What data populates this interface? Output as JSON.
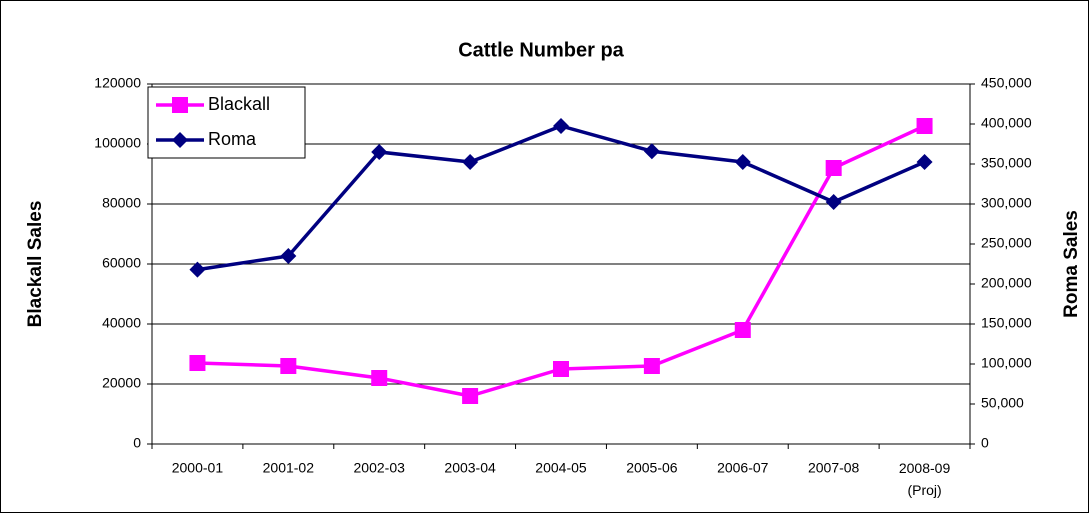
{
  "chart_data": {
    "type": "line",
    "title": "Cattle Number pa",
    "y_label": "Blackall Sales",
    "y2_label": "Roma Sales",
    "categories": [
      "2000-01",
      "2001-02",
      "2002-03",
      "2003-04",
      "2004-05",
      "2005-06",
      "2006-07",
      "2007-08",
      "2008-09\n(Proj)"
    ],
    "series": [
      {
        "name": "Blackall",
        "color": "#ff00ff",
        "marker": "square",
        "values": [
          27000,
          26000,
          22000,
          16000,
          25000,
          26000,
          38000,
          92000,
          106000
        ]
      },
      {
        "name": "Roma",
        "color": "#000080",
        "marker": "diamond",
        "axis": "y2",
        "values": [
          218000,
          235000,
          365000,
          352500,
          397500,
          366000,
          352500,
          302500,
          352500
        ]
      }
    ],
    "ylim": [
      0,
      120000
    ],
    "yticks": [
      0,
      20000,
      40000,
      60000,
      80000,
      100000,
      120000
    ],
    "y2lim": [
      0,
      450000
    ],
    "y2ticks": [
      {
        "value": 0,
        "label": "0"
      },
      {
        "value": 50000,
        "label": "50,000"
      },
      {
        "value": 100000,
        "label": "100,000"
      },
      {
        "value": 150000,
        "label": "150,000"
      },
      {
        "value": 200000,
        "label": "200,000"
      },
      {
        "value": 250000,
        "label": "250,000"
      },
      {
        "value": 300000,
        "label": "300,000"
      },
      {
        "value": 350000,
        "label": "350,000"
      },
      {
        "value": 400000,
        "label": "400,000"
      },
      {
        "value": 450000,
        "label": "450,000"
      }
    ],
    "grid": true,
    "legend": "top-left"
  }
}
